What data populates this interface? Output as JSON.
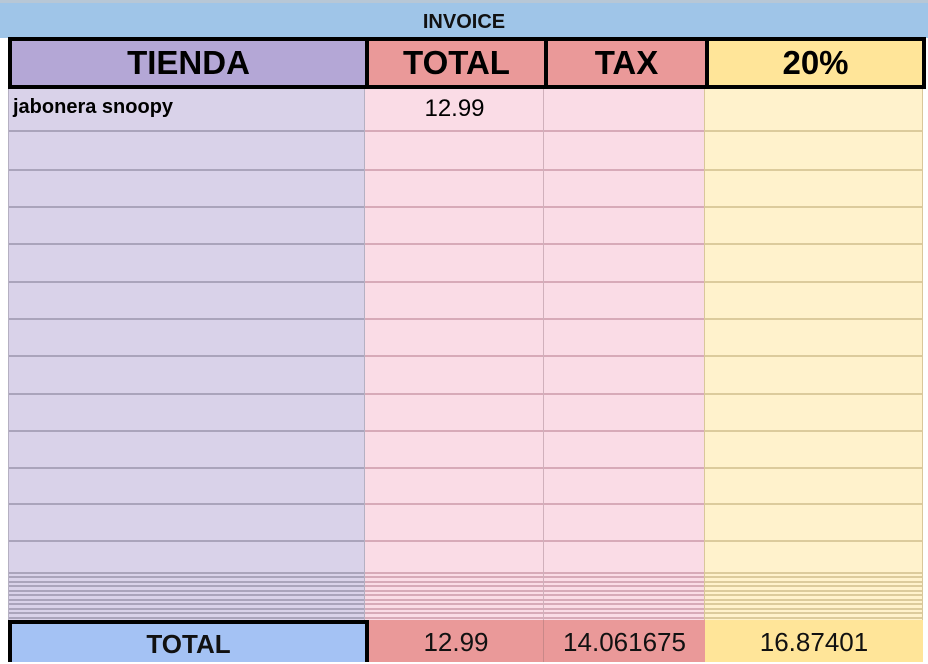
{
  "title": "INVOICE",
  "headers": {
    "tienda": "TIENDA",
    "total": "TOTAL",
    "tax": "TAX",
    "pct": "20%"
  },
  "rows": [
    {
      "tienda": "jabonera snoopy",
      "total": "12.99",
      "tax": "",
      "pct": ""
    }
  ],
  "totals": {
    "label": "TOTAL",
    "total": "12.99",
    "tax": "14.061675",
    "pct": "16.87401"
  },
  "colors": {
    "title_bg": "#9fc5e8",
    "tienda_header": "#b4a7d6",
    "tienda_body": "#d9d2e9",
    "total_header": "#ea9999",
    "total_body": "#fadce6",
    "pct_header": "#ffe599",
    "pct_body": "#fff2cc",
    "total_label_bg": "#a4c2f4"
  }
}
